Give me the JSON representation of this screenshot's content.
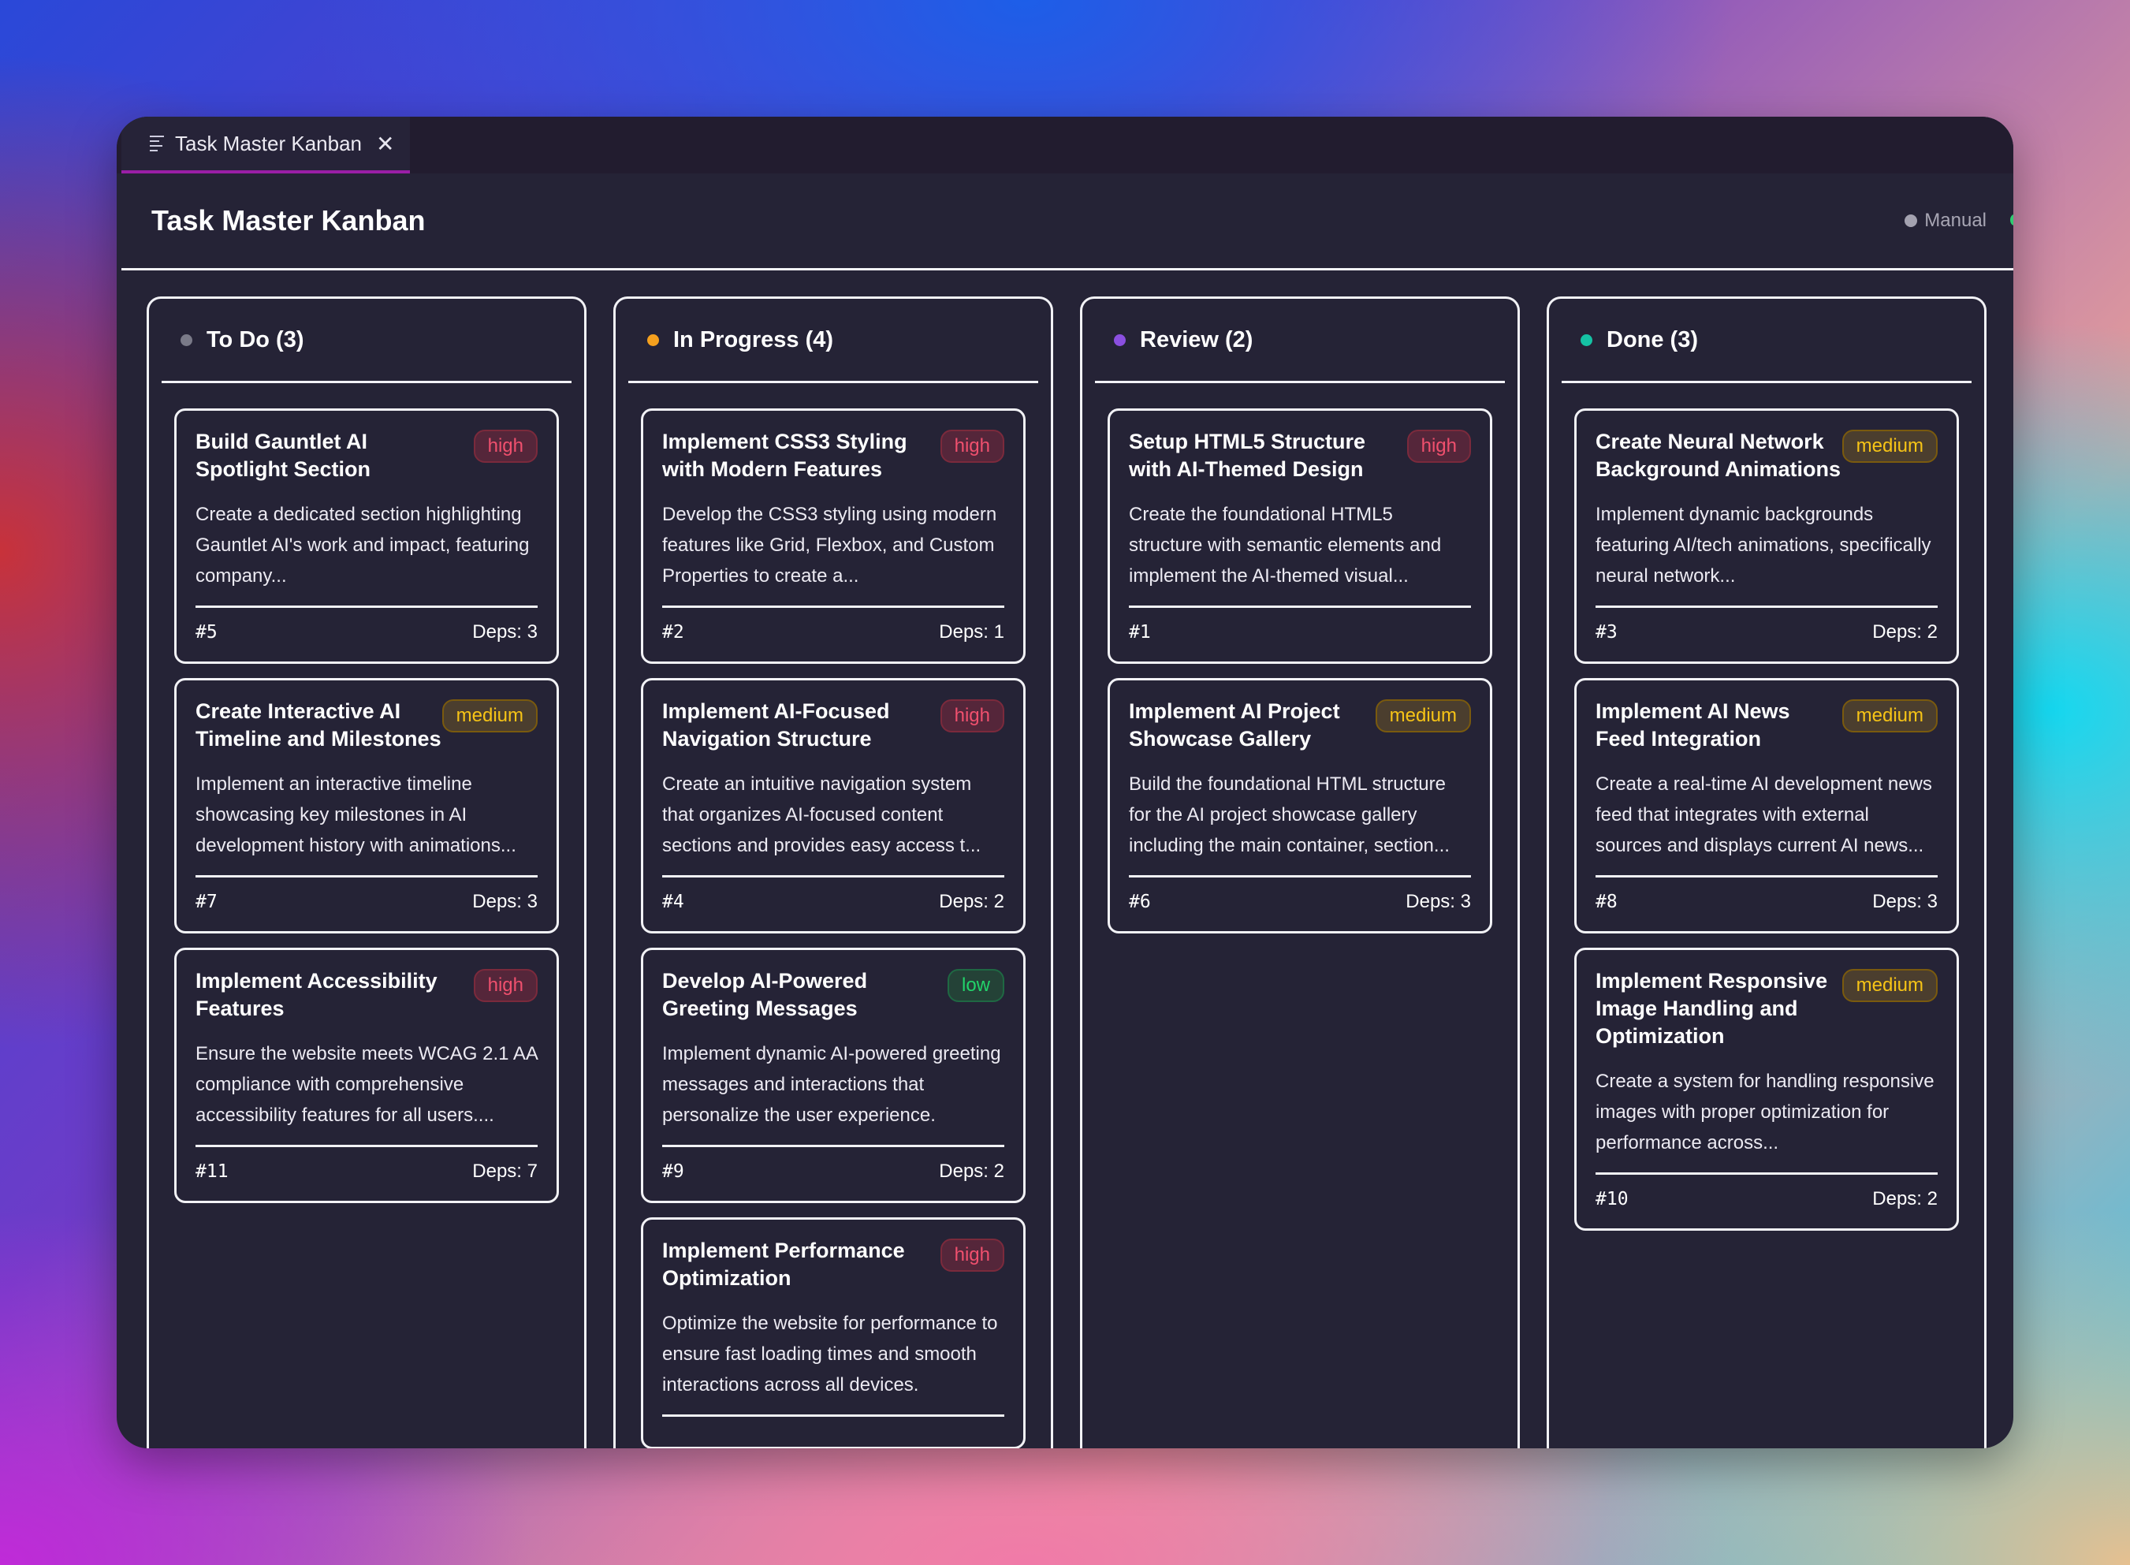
{
  "tab": {
    "icon": "list-icon",
    "label": "Task Master Kanban",
    "close_icon": "close-icon",
    "close_label": "✕"
  },
  "header": {
    "title": "Task Master Kanban",
    "status": "Manual"
  },
  "colors": {
    "todo": "#7a7a88",
    "in_progress": "#f5a01e",
    "review": "#8b4fe0",
    "done": "#15c2a4"
  },
  "columns": [
    {
      "key": "todo",
      "label": "To Do (3)",
      "cards": [
        {
          "title": "Build Gauntlet AI Spotlight Section",
          "priority": "high",
          "desc": "Create a dedicated section highlighting Gauntlet AI's work and impact, featuring company...",
          "id": "#5",
          "deps": "Deps: 3"
        },
        {
          "title": "Create Interactive AI Timeline and Milestones",
          "priority": "medium",
          "desc": "Implement an interactive timeline showcasing key milestones in AI development history with animations...",
          "id": "#7",
          "deps": "Deps: 3"
        },
        {
          "title": "Implement Accessibility Features",
          "priority": "high",
          "desc": "Ensure the website meets WCAG 2.1 AA compliance with comprehensive accessibility features for all users....",
          "id": "#11",
          "deps": "Deps: 7"
        }
      ]
    },
    {
      "key": "in_progress",
      "label": "In Progress (4)",
      "cards": [
        {
          "title": "Implement CSS3 Styling with Modern Features",
          "priority": "high",
          "desc": "Develop the CSS3 styling using modern features like Grid, Flexbox, and Custom Properties to create a...",
          "id": "#2",
          "deps": "Deps: 1"
        },
        {
          "title": "Implement AI-Focused Navigation Structure",
          "priority": "high",
          "desc": "Create an intuitive navigation system that organizes AI-focused content sections and provides easy access t...",
          "id": "#4",
          "deps": "Deps: 2"
        },
        {
          "title": "Develop AI-Powered Greeting Messages",
          "priority": "low",
          "desc": "Implement dynamic AI-powered greeting messages and interactions that personalize the user experience.",
          "id": "#9",
          "deps": "Deps: 2"
        },
        {
          "title": "Implement Performance Optimization",
          "priority": "high",
          "desc": "Optimize the website for performance to ensure fast loading times and smooth interactions across all devices.",
          "id": "",
          "deps": ""
        }
      ]
    },
    {
      "key": "review",
      "label": "Review (2)",
      "cards": [
        {
          "title": "Setup HTML5 Structure with AI-Themed Design",
          "priority": "high",
          "desc": "Create the foundational HTML5 structure with semantic elements and implement the AI-themed visual...",
          "id": "#1",
          "deps": ""
        },
        {
          "title": "Implement AI Project Showcase Gallery",
          "priority": "medium",
          "desc": "Build the foundational HTML structure for the AI project showcase gallery including the main container, section...",
          "id": "#6",
          "deps": "Deps: 3"
        }
      ]
    },
    {
      "key": "done",
      "label": "Done (3)",
      "cards": [
        {
          "title": "Create Neural Network Background Animations",
          "priority": "medium",
          "desc": "Implement dynamic backgrounds featuring AI/tech animations, specifically neural network...",
          "id": "#3",
          "deps": "Deps: 2"
        },
        {
          "title": "Implement AI News Feed Integration",
          "priority": "medium",
          "desc": "Create a real-time AI development news feed that integrates with external sources and displays current AI news...",
          "id": "#8",
          "deps": "Deps: 3"
        },
        {
          "title": "Implement Responsive Image Handling and Optimization",
          "priority": "medium",
          "desc": "Create a system for handling responsive images with proper optimization for performance across...",
          "id": "#10",
          "deps": "Deps: 2"
        }
      ]
    }
  ]
}
